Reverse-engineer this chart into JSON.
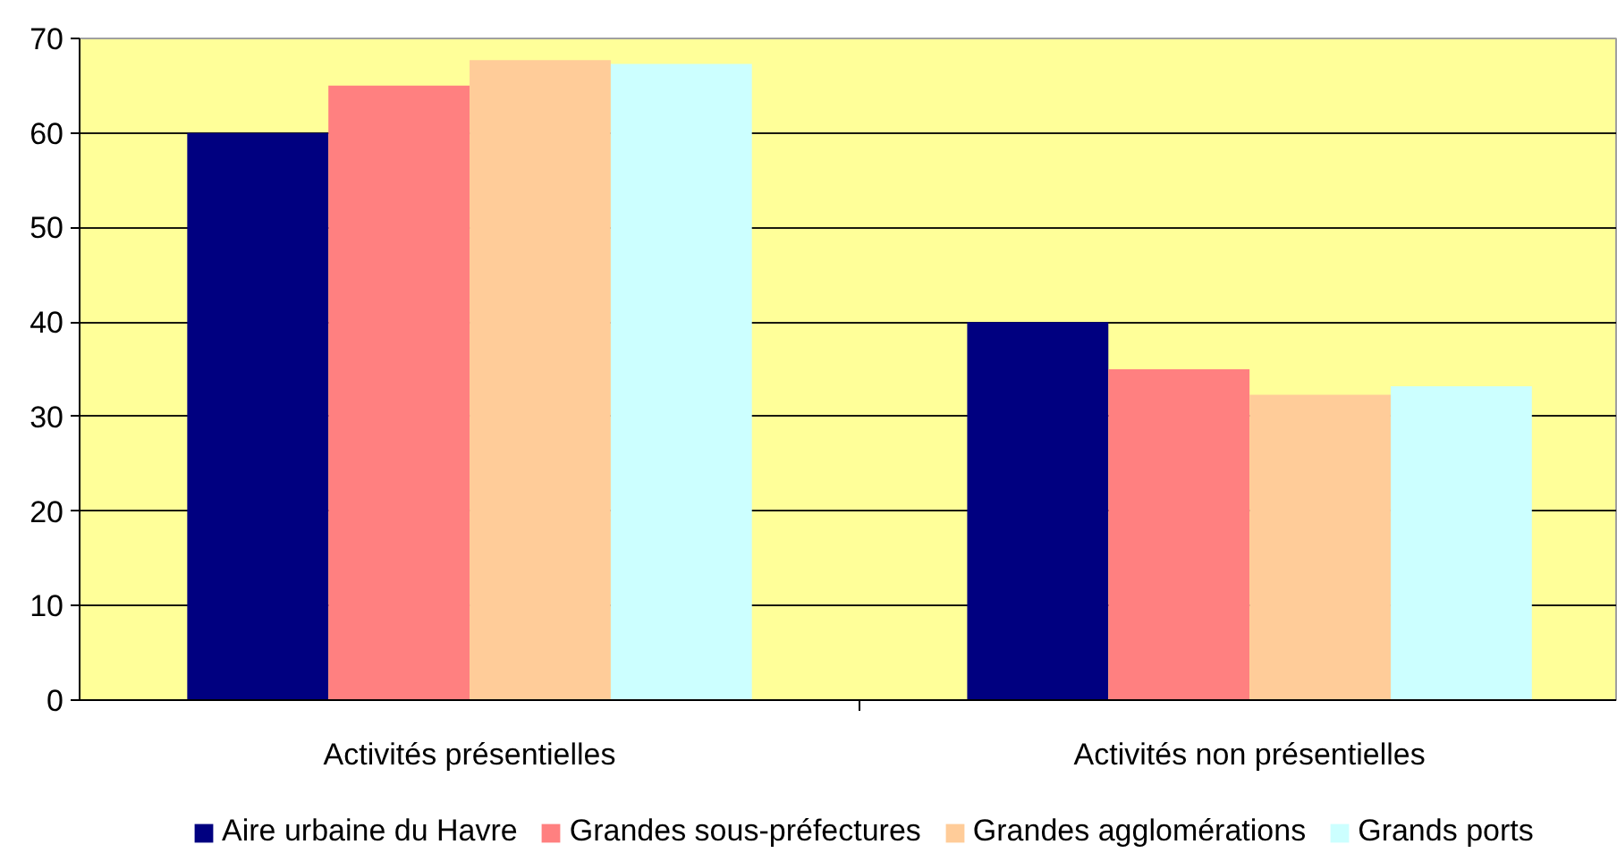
{
  "chart_data": {
    "type": "bar",
    "categories": [
      "Activités présentielles",
      "Activités non présentielles"
    ],
    "series": [
      {
        "name": "Aire urbaine du Havre",
        "color": "#000080",
        "values": [
          60,
          40
        ]
      },
      {
        "name": "Grandes sous-préfectures",
        "color": "#ff8080",
        "values": [
          65,
          35
        ]
      },
      {
        "name": "Grandes agglomérations",
        "color": "#ffcc99",
        "values": [
          67.7,
          32.3
        ]
      },
      {
        "name": "Grands ports",
        "color": "#ccffff",
        "values": [
          67.3,
          33.2
        ]
      }
    ],
    "ylim": [
      0,
      70
    ],
    "yticks": [
      0,
      10,
      20,
      30,
      40,
      50,
      60,
      70
    ],
    "grid": "y",
    "legend": "bottom"
  }
}
